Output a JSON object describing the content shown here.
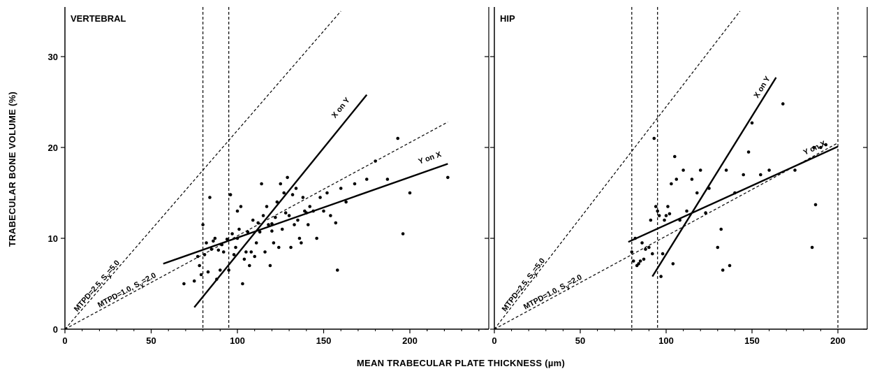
{
  "chart_data": [
    {
      "type": "scatter",
      "title": "VERTEBRAL",
      "xlabel": "MEAN TRABECULAR PLATE THICKNESS (µm)",
      "ylabel": "TRABECULAR BONE VOLUME (%)",
      "xlim": [
        0,
        225
      ],
      "ylim": [
        0,
        35
      ],
      "xticks": [
        "0",
        "50",
        "100",
        "150",
        "200"
      ],
      "yticks": [
        "0",
        "10",
        "20",
        "30"
      ],
      "vlines": [
        80,
        95
      ],
      "series": [
        {
          "kind": "points",
          "x": [
            69,
            75,
            77,
            78,
            79,
            80,
            81,
            82,
            83,
            84,
            85,
            86,
            87,
            88,
            89,
            90,
            91,
            92,
            94,
            95,
            96,
            97,
            98,
            99,
            100,
            100,
            101,
            102,
            103,
            104,
            105,
            106,
            107,
            108,
            109,
            110,
            111,
            112,
            113,
            114,
            115,
            116,
            117,
            118,
            119,
            120,
            120,
            121,
            122,
            123,
            124,
            125,
            126,
            127,
            128,
            129,
            130,
            131,
            132,
            133,
            134,
            135,
            136,
            137,
            138,
            139,
            140,
            141,
            142,
            144,
            146,
            148,
            150,
            152,
            154,
            157,
            158,
            160,
            163,
            168,
            175,
            180,
            187,
            193,
            196,
            200,
            222
          ],
          "y": [
            5.0,
            5.3,
            8.0,
            7.0,
            6.0,
            11.5,
            8.2,
            9.5,
            6.3,
            14.5,
            8.8,
            9.7,
            10.0,
            5.5,
            8.7,
            6.5,
            9.3,
            8.5,
            9.9,
            6.5,
            14.8,
            10.5,
            8.2,
            9.0,
            13.0,
            10.0,
            11.0,
            13.5,
            5.0,
            7.7,
            8.5,
            10.7,
            7.0,
            8.5,
            12.0,
            8.0,
            9.5,
            11.7,
            10.7,
            16.0,
            12.5,
            8.5,
            13.5,
            11.5,
            7.0,
            10.8,
            11.6,
            9.5,
            12.3,
            14.0,
            9.0,
            16.0,
            11.0,
            15.0,
            12.8,
            16.7,
            12.5,
            9.0,
            14.8,
            11.5,
            15.5,
            12.0,
            10.0,
            9.5,
            14.5,
            13.0,
            12.8,
            11.5,
            13.5,
            13.0,
            10.0,
            14.5,
            13.0,
            15.0,
            12.5,
            11.7,
            6.5,
            15.5,
            14.0,
            16.0,
            16.5,
            18.5,
            16.5,
            21.0,
            10.5,
            15.0,
            16.7
          ]
        },
        {
          "kind": "fit",
          "name": "Y on X",
          "x": [
            57,
            222
          ],
          "y": [
            7.2,
            18.2
          ]
        },
        {
          "kind": "fit",
          "name": "X on Y",
          "x": [
            75,
            175
          ],
          "y": [
            2.4,
            25.8
          ]
        },
        {
          "kind": "reference",
          "name": "MTPD=2.5, Sy=5.0",
          "x": [
            0,
            160
          ],
          "y": [
            0,
            35
          ]
        },
        {
          "kind": "reference",
          "name": "MTPD=1.0, Sy=2.0",
          "x": [
            0,
            222
          ],
          "y": [
            0,
            22.8
          ]
        }
      ]
    },
    {
      "type": "scatter",
      "title": "HIP",
      "xlabel": "MEAN TRABECULAR PLATE THICKNESS (µm)",
      "ylabel": "TRABECULAR BONE VOLUME (%)",
      "xlim": [
        0,
        200
      ],
      "ylim": [
        0,
        35
      ],
      "xticks": [
        "0",
        "50",
        "100",
        "150",
        "200"
      ],
      "yticks": [],
      "vlines": [
        80,
        95,
        200
      ],
      "series": [
        {
          "kind": "points",
          "x": [
            80,
            81,
            82,
            83,
            84,
            85,
            86,
            87,
            88,
            90,
            91,
            92,
            93,
            94,
            95,
            96,
            97,
            98,
            99,
            100,
            101,
            102,
            103,
            104,
            105,
            106,
            108,
            110,
            112,
            115,
            118,
            120,
            123,
            125,
            130,
            132,
            133,
            135,
            137,
            140,
            145,
            148,
            150,
            155,
            160,
            168,
            175,
            185,
            186,
            187,
            190,
            193
          ],
          "y": [
            8.5,
            7.5,
            10.0,
            7.0,
            7.2,
            7.5,
            9.5,
            7.7,
            8.8,
            9.0,
            12.0,
            8.3,
            21.0,
            13.5,
            13.0,
            12.5,
            5.8,
            8.3,
            12.0,
            12.5,
            13.5,
            12.7,
            16.0,
            7.2,
            19.0,
            16.5,
            12.0,
            17.5,
            13.0,
            16.5,
            15.0,
            17.5,
            12.8,
            15.5,
            9.0,
            11.0,
            6.5,
            17.5,
            7.0,
            15.0,
            17.0,
            19.5,
            22.7,
            17.0,
            17.5,
            24.8,
            17.5,
            9.0,
            20.0,
            13.7,
            20.0,
            20.3
          ]
        },
        {
          "kind": "fit",
          "name": "Y on X",
          "x": [
            78,
            200
          ],
          "y": [
            9.6,
            20.1
          ]
        },
        {
          "kind": "fit",
          "name": "X on Y",
          "x": [
            92,
            164
          ],
          "y": [
            5.8,
            27.7
          ]
        },
        {
          "kind": "reference",
          "name": "MTPD=2.5, Sy=5.0",
          "x": [
            0,
            143
          ],
          "y": [
            0,
            35
          ]
        },
        {
          "kind": "reference",
          "name": "MTPD=1.0, Sy=2.0",
          "x": [
            0,
            200
          ],
          "y": [
            0,
            20.5
          ]
        }
      ]
    }
  ],
  "labels": {
    "panel1_title": "VERTEBRAL",
    "panel2_title": "HIP",
    "xlabel": "MEAN  TRABECULAR PLATE THICKNESS (µm)",
    "ylabel": "TRABECULAR BONE VOLUME (%)",
    "ticks_x": [
      "0",
      "50",
      "100",
      "150",
      "200"
    ],
    "ticks_y": [
      "0",
      "10",
      "20",
      "30"
    ],
    "fit_yx": "Y on X",
    "fit_xy": "X on Y",
    "ref_25": "MTPD=2.5, S",
    "ref_25_sub": "y",
    "ref_25_val": "=5.0",
    "ref_10": "MTPD=1.0, S",
    "ref_10_sub": "y",
    "ref_10_val": "=2.0"
  }
}
